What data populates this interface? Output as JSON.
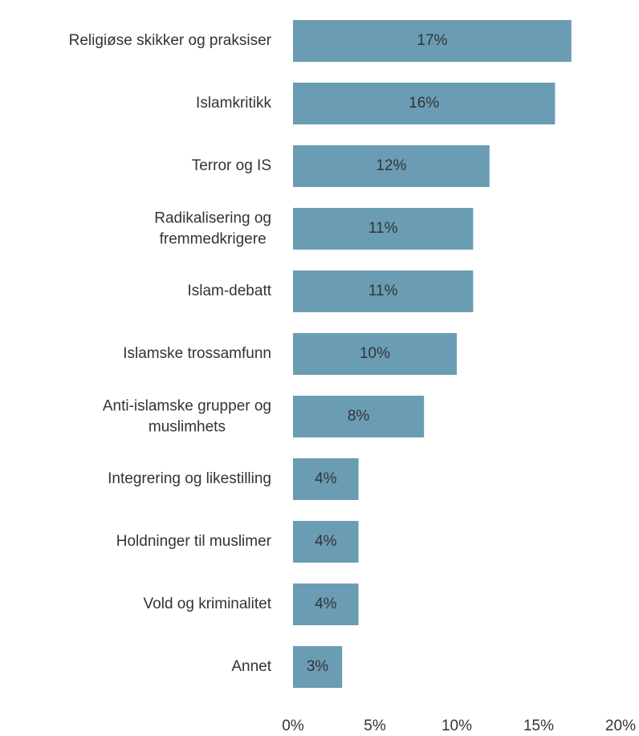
{
  "chart_data": {
    "type": "bar",
    "orientation": "horizontal",
    "categories": [
      "Religiøse skikker og praksiser",
      "Islamkritikk",
      "Terror og IS",
      "Radikalisering og\nfremmedkrigere",
      "Islam-debatt",
      "Islamske trossamfunn",
      "Anti-islamske grupper og\nmuslimhets",
      "Integrering og likestilling",
      "Holdninger til muslimer",
      "Vold og kriminalitet",
      "Annet"
    ],
    "values": [
      17,
      16,
      12,
      11,
      11,
      10,
      8,
      4,
      4,
      4,
      3
    ],
    "value_labels": [
      "17%",
      "16%",
      "12%",
      "11%",
      "11%",
      "10%",
      "8%",
      "4%",
      "4%",
      "4%",
      "3%"
    ],
    "color": "#6a9db3",
    "xlim": [
      0,
      20
    ],
    "xticks": [
      {
        "value": 0,
        "label": "0%"
      },
      {
        "value": 5,
        "label": "5%"
      },
      {
        "value": 10,
        "label": "10%"
      },
      {
        "value": 15,
        "label": "15%"
      },
      {
        "value": 20,
        "label": "20%"
      }
    ],
    "grid": false
  }
}
